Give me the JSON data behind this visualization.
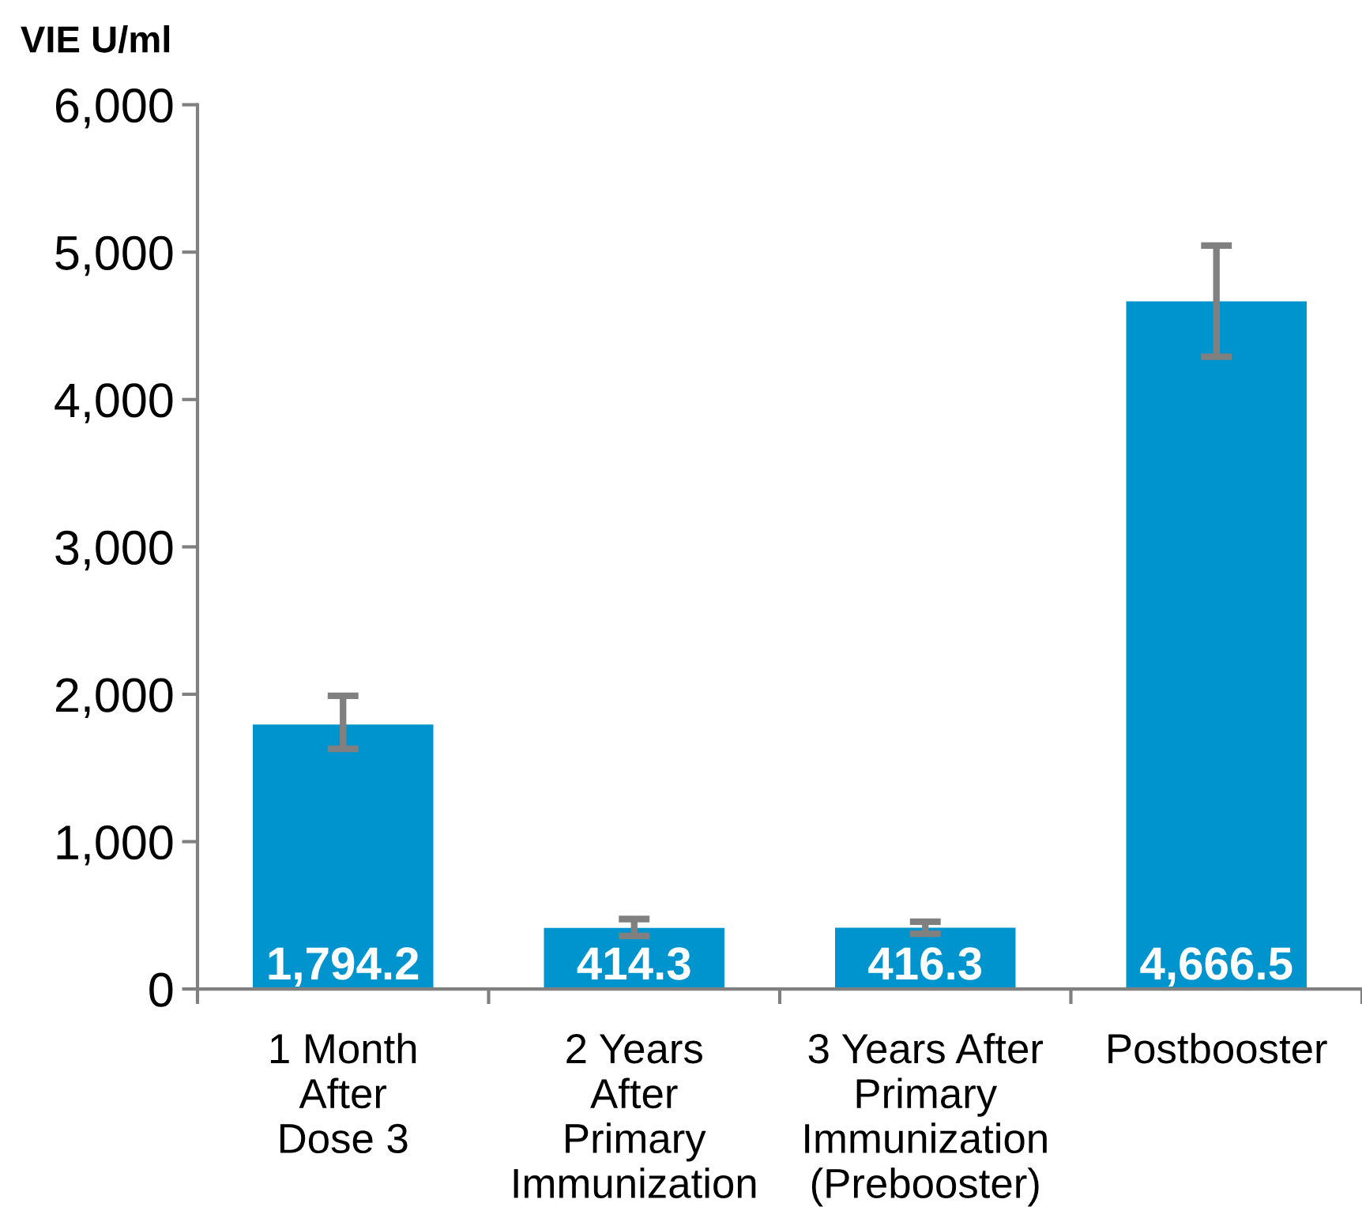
{
  "chart_data": {
    "type": "bar",
    "ylabel": "VIE U/ml",
    "categories": [
      "1 Month\nAfter\nDose 3",
      "2 Years\nAfter\nPrimary\nImmunization",
      "3 Years After\nPrimary\nImmunization\n(Prebooster)",
      "Postbooster"
    ],
    "values": [
      1794.2,
      414.3,
      416.3,
      4666.5
    ],
    "value_labels": [
      "1,794.2",
      "414.3",
      "416.3",
      "4,666.5"
    ],
    "errors": [
      [
        1630,
        1990
      ],
      [
        360,
        475
      ],
      [
        375,
        457
      ],
      [
        4290,
        5045
      ]
    ],
    "color": "#0094cf",
    "ylim": [
      0,
      6000
    ],
    "yticks": [
      {
        "value": 0,
        "label": "0"
      },
      {
        "value": 1000,
        "label": "1,000"
      },
      {
        "value": 2000,
        "label": "2,000"
      },
      {
        "value": 3000,
        "label": "3,000"
      },
      {
        "value": 4000,
        "label": "4,000"
      },
      {
        "value": 5000,
        "label": "5,000"
      },
      {
        "value": 6000,
        "label": "6,000"
      }
    ],
    "grid": false,
    "legend": false
  }
}
